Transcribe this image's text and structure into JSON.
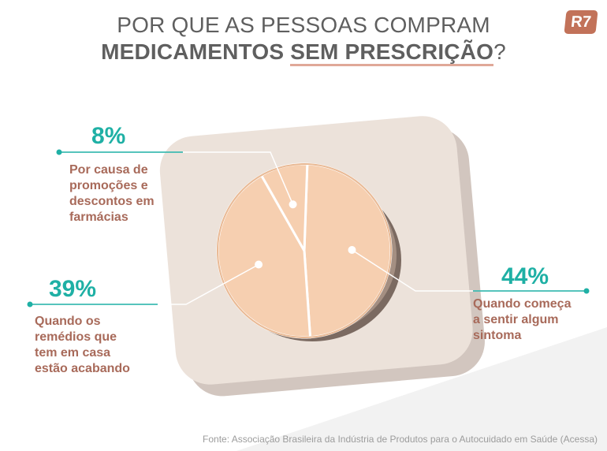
{
  "header": {
    "title_line1": "POR QUE AS PESSOAS COMPRAM",
    "title_line2_part1": "MEDICAMENTOS ",
    "title_line2_part2": "SEM PRESCRIÇÃO",
    "title_line2_part3": "?",
    "logo": "R7"
  },
  "colors": {
    "teal": "#1fb0a5",
    "label_brown": "#a86a5a",
    "pill": "#f6cfb0",
    "blister": "#ece2da",
    "logo_bg": "#c27259"
  },
  "chart_data": {
    "type": "pie",
    "title": "POR QUE AS PESSOAS COMPRAM MEDICAMENTOS SEM PRESCRIÇÃO?",
    "unit": "%",
    "slices": [
      {
        "label": "Quando começa a sentir algum sintoma",
        "value": 44,
        "display": "44%",
        "desc_lines": [
          "Quando começa",
          "a sentir algum",
          "sintoma"
        ]
      },
      {
        "label": "Quando os remédios que tem em casa estão acabando",
        "value": 39,
        "display": "39%",
        "desc_lines": [
          "Quando os",
          "remédios que",
          "tem em casa",
          "estão acabando"
        ]
      },
      {
        "label": "Por causa de promoções e descontos em farmácias",
        "value": 8,
        "display": "8%",
        "desc_lines": [
          "Por causa de",
          "promoções e",
          "descontos em",
          "farmácias"
        ]
      }
    ]
  },
  "footer": {
    "source": "Fonte: Associação Brasileira da Indústria de Produtos para o Autocuidado em Saúde (Acessa)"
  }
}
